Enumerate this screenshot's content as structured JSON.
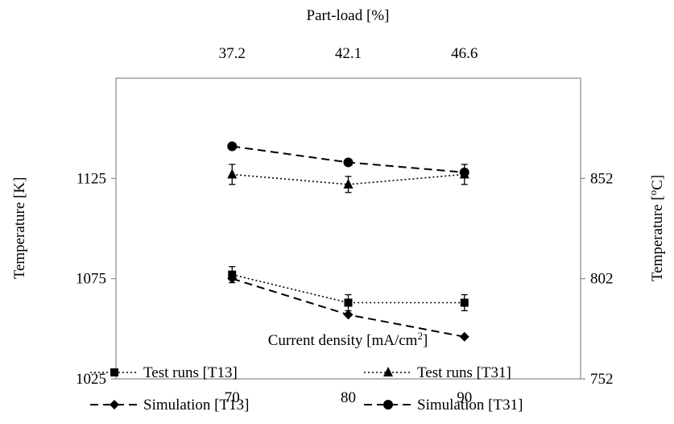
{
  "chart_data": {
    "type": "line",
    "x": [
      70,
      80,
      90
    ],
    "xlabel_main": "Current density [mA/cm",
    "xlabel_sup": "2",
    "xlabel_tail": "]",
    "x_ticks": [
      "70",
      "80",
      "90"
    ],
    "xlim": [
      60,
      100
    ],
    "top_axis": {
      "label": "Part-load [%]",
      "ticks": [
        "37.2",
        "42.1",
        "46.6"
      ]
    },
    "ylabel_left": "Temperature [K]",
    "ylim_left": [
      1025,
      1175
    ],
    "yticks_left": [
      "1025",
      "1075",
      "1125"
    ],
    "ylabel_right_main": "Temperature [",
    "ylabel_right_sup": "o",
    "ylabel_right_tail": "C]",
    "yticks_right": [
      "752",
      "802",
      "852"
    ],
    "grid": false,
    "legend_position": "bottom",
    "series": [
      {
        "name": "Test runs [T13]",
        "marker": "square",
        "line": "dotted",
        "values": [
          1077,
          1063,
          1063
        ],
        "errors": [
          4,
          4,
          4
        ]
      },
      {
        "name": "Test runs [T31]",
        "marker": "triangle",
        "line": "dotted",
        "values": [
          1127,
          1122,
          1127
        ],
        "errors": [
          5,
          4,
          5
        ]
      },
      {
        "name": "Simulation [T13]",
        "marker": "diamond",
        "line": "dashed",
        "values": [
          1075,
          1057,
          1046
        ],
        "errors": null
      },
      {
        "name": "Simulation [T31]",
        "marker": "circle",
        "line": "dashed",
        "values": [
          1141,
          1133,
          1128
        ],
        "errors": null
      }
    ]
  }
}
